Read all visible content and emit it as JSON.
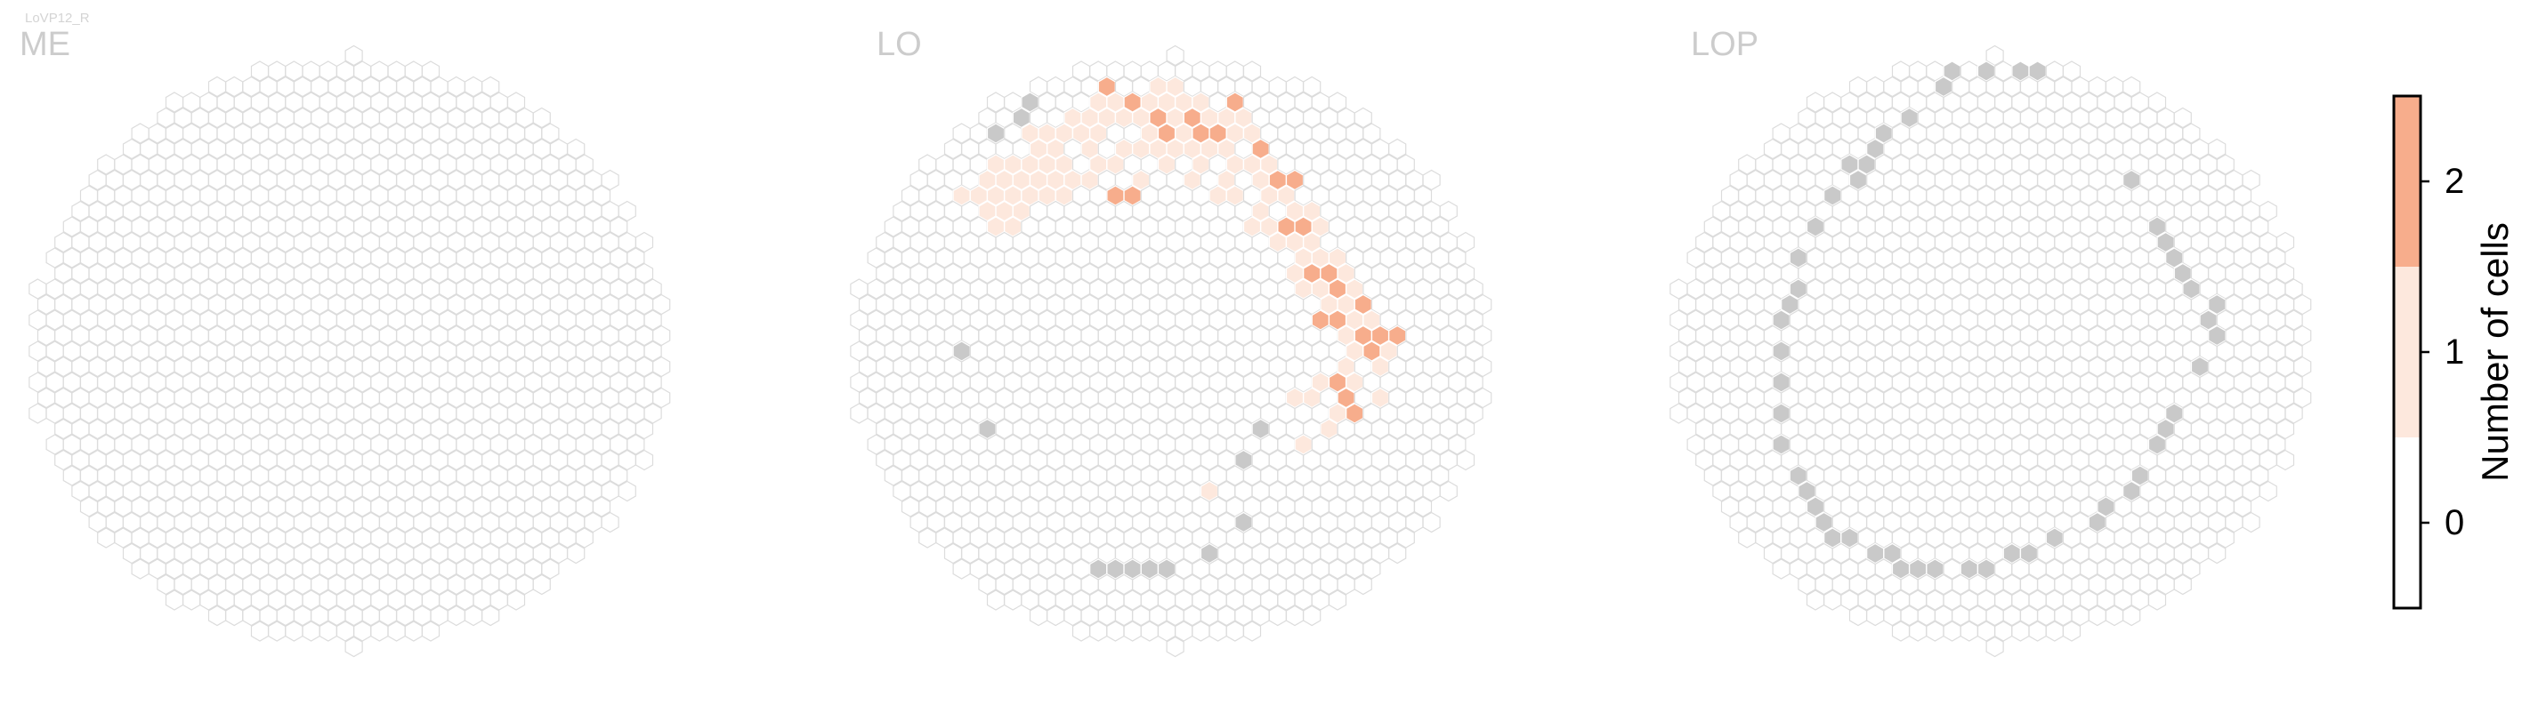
{
  "figure": {
    "cell_type_label": "LoVP12_R"
  },
  "colors": {
    "hex_outline": "#dcdcdc",
    "grey_fill": "#c9c9c9",
    "level_0": "#ffffff",
    "level_1": "#fde8dd",
    "level_2": "#f7ad8c",
    "title_color": "#cccccc",
    "label_color": "#d4d4d4"
  },
  "chart_data": {
    "type": "heatmap",
    "colorbar": {
      "label": "Number of cells",
      "ticks": [
        "0",
        "1",
        "2"
      ],
      "levels": [
        0,
        1,
        2
      ],
      "range": [
        -0.5,
        2.5
      ]
    },
    "panels": [
      {
        "title": "ME",
        "hexes_with_count_1": [],
        "hexes_with_count_2": [],
        "grey_hexes": []
      },
      {
        "title": "LO",
        "hexes_with_count_1": [
          [
            -12,
            -10
          ],
          [
            -11,
            -11
          ],
          [
            -11,
            -10
          ],
          [
            -11,
            -9
          ],
          [
            -10,
            -12
          ],
          [
            -10,
            -11
          ],
          [
            -10,
            -10
          ],
          [
            -10,
            -9
          ],
          [
            -10,
            -8
          ],
          [
            -9,
            -12
          ],
          [
            -9,
            -11
          ],
          [
            -9,
            -10
          ],
          [
            -9,
            -9
          ],
          [
            -9,
            -8
          ],
          [
            -8,
            -14
          ],
          [
            -8,
            -13
          ],
          [
            -8,
            -12
          ],
          [
            -8,
            -11
          ],
          [
            -8,
            -10
          ],
          [
            -7,
            -14
          ],
          [
            -7,
            -13
          ],
          [
            -7,
            -12
          ],
          [
            -7,
            -11
          ],
          [
            -7,
            -10
          ],
          [
            -6,
            -15
          ],
          [
            -6,
            -14
          ],
          [
            -6,
            -12
          ],
          [
            -6,
            -11
          ],
          [
            -6,
            -10
          ],
          [
            -5,
            -15
          ],
          [
            -5,
            -14
          ],
          [
            -5,
            -13
          ],
          [
            -5,
            -11
          ],
          [
            -4,
            -16
          ],
          [
            -4,
            -15
          ],
          [
            -4,
            -14
          ],
          [
            -4,
            -12
          ],
          [
            -3,
            -16
          ],
          [
            -3,
            -15
          ],
          [
            -3,
            -13
          ],
          [
            -3,
            -12
          ],
          [
            -2,
            -16
          ],
          [
            -2,
            -15
          ],
          [
            -2,
            -13
          ],
          [
            -2,
            -11
          ],
          [
            -1,
            -17
          ],
          [
            -1,
            -16
          ],
          [
            -1,
            -14
          ],
          [
            -1,
            -13
          ],
          [
            0,
            -17
          ],
          [
            0,
            -16
          ],
          [
            0,
            -15
          ],
          [
            0,
            -13
          ],
          [
            0,
            -12
          ],
          [
            1,
            -16
          ],
          [
            1,
            -14
          ],
          [
            1,
            -13
          ],
          [
            1,
            -11
          ],
          [
            2,
            -16
          ],
          [
            2,
            -15
          ],
          [
            2,
            -13
          ],
          [
            2,
            -12
          ],
          [
            3,
            -15
          ],
          [
            3,
            -13
          ],
          [
            3,
            -11
          ],
          [
            3,
            -10
          ],
          [
            4,
            -15
          ],
          [
            4,
            -14
          ],
          [
            4,
            -12
          ],
          [
            4,
            -10
          ],
          [
            5,
            -14
          ],
          [
            5,
            -12
          ],
          [
            5,
            -11
          ],
          [
            5,
            -9
          ],
          [
            5,
            -8
          ],
          [
            6,
            -12
          ],
          [
            6,
            -10
          ],
          [
            6,
            -8
          ],
          [
            6,
            -7
          ],
          [
            7,
            -10
          ],
          [
            7,
            -9
          ],
          [
            7,
            -7
          ],
          [
            7,
            -5
          ],
          [
            8,
            -9
          ],
          [
            8,
            -7
          ],
          [
            8,
            -6
          ],
          [
            8,
            -4
          ],
          [
            9,
            -8
          ],
          [
            9,
            -6
          ],
          [
            9,
            -4
          ],
          [
            9,
            -3
          ],
          [
            10,
            -6
          ],
          [
            10,
            -5
          ],
          [
            10,
            -3
          ],
          [
            10,
            -1
          ],
          [
            11,
            -4
          ],
          [
            11,
            -2
          ],
          [
            11,
            0
          ],
          [
            12,
            -2
          ],
          [
            12,
            1
          ],
          [
            13,
            0
          ],
          [
            7,
            3
          ],
          [
            8,
            3
          ],
          [
            9,
            2
          ],
          [
            10,
            1
          ],
          [
            10,
            4
          ],
          [
            11,
            2
          ],
          [
            12,
            3
          ],
          [
            8,
            6
          ],
          [
            9,
            5
          ],
          [
            2,
            9
          ]
        ],
        "hexes_with_count_2": [
          [
            -4,
            -17
          ],
          [
            -2,
            -16
          ],
          [
            -1,
            -15
          ],
          [
            0,
            -14
          ],
          [
            1,
            -15
          ],
          [
            2,
            -14
          ],
          [
            3,
            -14
          ],
          [
            4,
            -16
          ],
          [
            5,
            -13
          ],
          [
            6,
            -11
          ],
          [
            7,
            -11
          ],
          [
            7,
            -8
          ],
          [
            8,
            -8
          ],
          [
            8,
            -5
          ],
          [
            9,
            -5
          ],
          [
            9,
            -2
          ],
          [
            10,
            -4
          ],
          [
            10,
            -2
          ],
          [
            11,
            -3
          ],
          [
            11,
            -1
          ],
          [
            12,
            -1
          ],
          [
            12,
            0
          ],
          [
            13,
            -1
          ],
          [
            10,
            2
          ],
          [
            10,
            3
          ],
          [
            11,
            4
          ],
          [
            -3,
            -10
          ],
          [
            -2,
            -10
          ]
        ],
        "grey_hexes": [
          [
            -8,
            -16
          ],
          [
            -9,
            -15
          ],
          [
            -10,
            -14
          ],
          [
            -10,
            -12
          ],
          [
            -11,
            -9
          ],
          [
            -12,
            0
          ],
          [
            -11,
            5
          ],
          [
            -4,
            14
          ],
          [
            -3,
            14
          ],
          [
            -2,
            14
          ],
          [
            -1,
            14
          ],
          [
            0,
            14
          ],
          [
            2,
            13
          ],
          [
            4,
            11
          ],
          [
            4,
            7
          ],
          [
            5,
            5
          ],
          [
            2,
            -20
          ],
          [
            4,
            -19
          ]
        ]
      },
      {
        "title": "LOP",
        "hexes_with_count_1": [],
        "hexes_with_count_2": [],
        "grey_hexes": [
          [
            -3,
            -17
          ],
          [
            -2,
            -18
          ],
          [
            0,
            -18
          ],
          [
            2,
            -18
          ],
          [
            3,
            -18
          ],
          [
            -5,
            -15
          ],
          [
            -6,
            -14
          ],
          [
            -7,
            -13
          ],
          [
            -7,
            -12
          ],
          [
            -8,
            -12
          ],
          [
            -8,
            -11
          ],
          [
            -9,
            -10
          ],
          [
            -10,
            -8
          ],
          [
            -11,
            -6
          ],
          [
            -11,
            -4
          ],
          [
            -12,
            -3
          ],
          [
            -12,
            -2
          ],
          [
            -12,
            0
          ],
          [
            -12,
            2
          ],
          [
            -12,
            4
          ],
          [
            -12,
            6
          ],
          [
            -11,
            8
          ],
          [
            -11,
            9
          ],
          [
            -10,
            10
          ],
          [
            -10,
            11
          ],
          [
            -9,
            12
          ],
          [
            -8,
            12
          ],
          [
            -7,
            13
          ],
          [
            -6,
            13
          ],
          [
            -5,
            14
          ],
          [
            -4,
            14
          ],
          [
            -3,
            14
          ],
          [
            -1,
            14
          ],
          [
            0,
            14
          ],
          [
            1,
            13
          ],
          [
            2,
            13
          ],
          [
            4,
            12
          ],
          [
            7,
            10
          ],
          [
            8,
            9
          ],
          [
            9,
            8
          ],
          [
            10,
            6
          ],
          [
            10,
            5
          ],
          [
            11,
            4
          ],
          [
            12,
            1
          ],
          [
            13,
            -1
          ],
          [
            13,
            -2
          ],
          [
            13,
            -3
          ],
          [
            12,
            -4
          ],
          [
            11,
            -5
          ],
          [
            11,
            -6
          ],
          [
            10,
            -7
          ],
          [
            10,
            -8
          ],
          [
            8,
            -11
          ],
          [
            -3,
            14
          ],
          [
            6,
            11
          ]
        ]
      }
    ]
  }
}
